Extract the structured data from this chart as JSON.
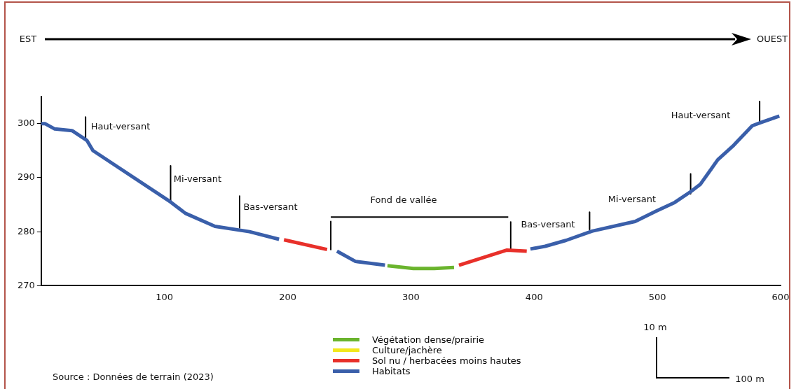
{
  "chart_data": {
    "type": "line",
    "xlim": [
      0,
      600
    ],
    "xticks": [
      100,
      200,
      300,
      400,
      500,
      600
    ],
    "ylim": [
      270,
      305
    ],
    "yticks": [
      270,
      280,
      290,
      300
    ],
    "grid": false,
    "legend": "bottom",
    "series": [
      {
        "name": "Végétation dense/prairie",
        "color": "#6ab42d",
        "x": [
          281,
          302,
          319,
          335
        ],
        "values": [
          273.7,
          273.2,
          273.2,
          273.4
        ]
      },
      {
        "name": "Culture/jachère",
        "color": "#f2e81c"
      },
      {
        "name": "Sol nu / herbacées moins hautes",
        "color": "#e8302a",
        "x": [
          197,
          232,
          null,
          339,
          378,
          394
        ],
        "values": [
          278.5,
          276.7,
          null,
          273.8,
          276.6,
          276.4
        ]
      },
      {
        "name": "Habitats",
        "color": "#3a5faa",
        "x": [
          0,
          3,
          11,
          25,
          37,
          42,
          105,
          117,
          141,
          169,
          193,
          null,
          240,
          255,
          279,
          null,
          397,
          409,
          426,
          447,
          482,
          499,
          514,
          527,
          535,
          549,
          562,
          577,
          584,
          599
        ],
        "values": [
          300,
          300,
          299.0,
          298.7,
          296.9,
          295.0,
          285.5,
          283.4,
          281.0,
          280.0,
          278.6,
          null,
          276.4,
          274.5,
          273.8,
          null,
          276.8,
          277.3,
          278.4,
          280.1,
          281.9,
          283.8,
          285.4,
          287.4,
          288.8,
          293.3,
          296.0,
          299.6,
          300.2,
          301.4
        ]
      },
      {
        "color": "#000000",
        "x": [
          36,
          36,
          null,
          105,
          105,
          null,
          161,
          161,
          null,
          235,
          235,
          null,
          381,
          381,
          null,
          445,
          445,
          null,
          527,
          527,
          null,
          583,
          583,
          null,
          235,
          379
        ],
        "values": [
          301.2,
          296.9,
          null,
          292.2,
          285.5,
          null,
          286.6,
          280.7,
          null,
          281.9,
          276.7,
          null,
          281.8,
          276.7,
          null,
          283.6,
          280.4,
          null,
          290.7,
          287.0,
          null,
          304.1,
          300.3,
          null,
          282.7,
          282.7
        ]
      }
    ],
    "annotations": [
      "Haut-versant",
      "Mi-versant",
      "Bas-versant",
      "Fond de vallée",
      "Bas-versant",
      "Mi-versant",
      "Haut-versant",
      "EST",
      "OUEST",
      "10 m",
      "100 m",
      "Source : Données de terrain (2023)"
    ]
  }
}
